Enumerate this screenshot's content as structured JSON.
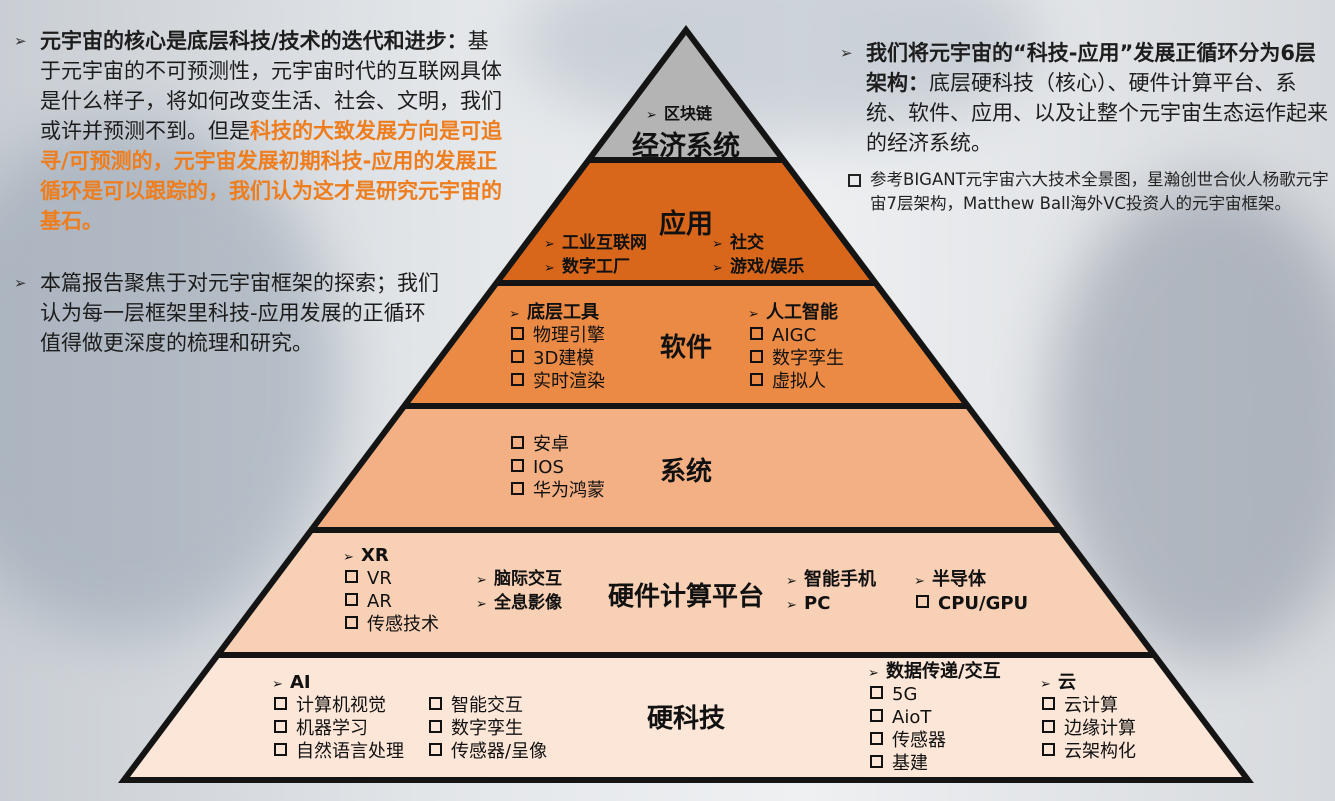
{
  "left_panel": {
    "p1_bold": "元宇宙的核心是底层科技/技术的迭代和进步：",
    "p1_normal": "基于元宇宙的不可预测性，元宇宙时代的互联网具体是什么样子，将如何改变生活、社会、文明，我们或许并预测不到。但是",
    "p1_highlight": "科技的大致发展方向是可追寻/可预测的，元宇宙发展初期科技-应用的发展正循环是可以跟踪的，我们认为这才是研究元宇宙的基石。",
    "p2": "本篇报告聚焦于对元宇宙框架的探索；我们认为每一层框架里科技-应用发展的正循环值得做更深度的梳理和研究。"
  },
  "right_panel": {
    "p1_bold": "我们将元宇宙的“科技-应用”发展正循环分为6层架构：",
    "p1_normal": "底层硬科技（核心）、硬件计算平台、系统、软件、应用、以及让整个元宇宙生态运作起来的经济系统。",
    "note": "参考BIGANT元宇宙六大技术全景图，星瀚创世合伙人杨歌元宇宙7层架构，Matthew Ball海外VC投资人的元宇宙框架。"
  },
  "pyramid": {
    "colors": [
      "#b4b4b4",
      "#d8671c",
      "#eb8a45",
      "#f3b085",
      "#f8d0b5",
      "#fbe6d8"
    ],
    "layers": [
      {
        "title": "经济系统",
        "top_item": "区块链"
      },
      {
        "title": "应用",
        "col1": [
          "工业互联网",
          "数字工厂"
        ],
        "col2": [
          "社交",
          "游戏/娱乐"
        ]
      },
      {
        "title": "软件",
        "col1_head": "底层工具",
        "col1": [
          "物理引擎",
          "3D建模",
          "实时渲染"
        ],
        "col2_head": "人工智能",
        "col2": [
          "AIGC",
          "数字孪生",
          "虚拟人"
        ]
      },
      {
        "title": "系统",
        "col1": [
          "安卓",
          "IOS",
          "华为鸿蒙"
        ]
      },
      {
        "title": "硬件计算平台",
        "g1_head": "XR",
        "g1": [
          "VR",
          "AR",
          "传感技术"
        ],
        "g2": [
          "脑际交互",
          "全息影像"
        ],
        "g3": [
          "智能手机",
          "PC"
        ],
        "g4_head": "半导体",
        "g4": [
          "CPU/GPU"
        ]
      },
      {
        "title": "硬科技",
        "ai_head": "AI",
        "ai_col1": [
          "计算机视觉",
          "机器学习",
          "自然语言处理"
        ],
        "ai_col2": [
          "智能交互",
          "数字孪生",
          "传感器/呈像"
        ],
        "net_head": "数据传递/交互",
        "net": [
          "5G",
          "AioT",
          "传感器",
          "基建"
        ],
        "cloud_head": "云",
        "cloud": [
          "云计算",
          "边缘计算",
          "云架构化"
        ]
      }
    ]
  }
}
